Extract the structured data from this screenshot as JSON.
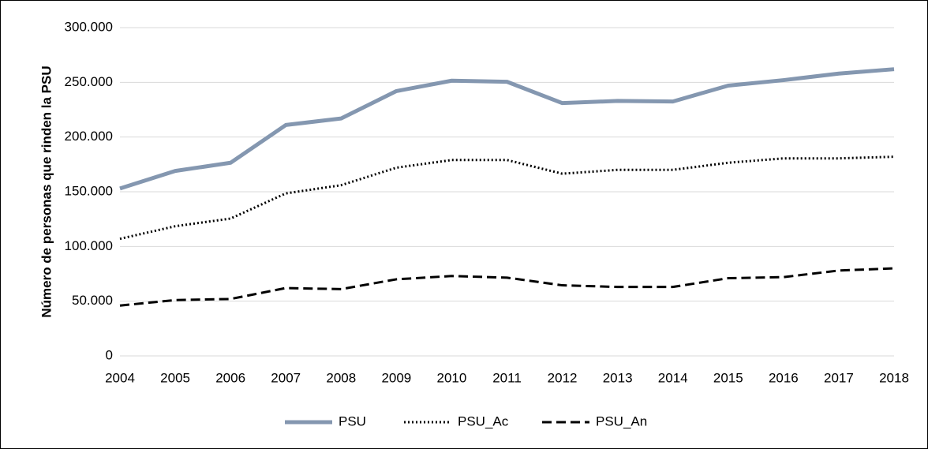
{
  "chart_data": {
    "type": "line",
    "y_label": "Número de personas que rinden la PSU",
    "categories": [
      "2004",
      "2005",
      "2006",
      "2007",
      "2008",
      "2009",
      "2010",
      "2011",
      "2012",
      "2013",
      "2014",
      "2015",
      "2016",
      "2017",
      "2018"
    ],
    "series": [
      {
        "name": "PSU",
        "color": "#8497b0",
        "width": 5,
        "dash": "none",
        "values": [
          153000,
          169000,
          176500,
          211000,
          217000,
          242000,
          251500,
          250500,
          231000,
          233000,
          232500,
          247000,
          252000,
          258000,
          262000
        ]
      },
      {
        "name": "PSU_Ac",
        "color": "#000000",
        "width": 3,
        "dash": "2 3",
        "values": [
          107000,
          118500,
          125500,
          148500,
          156000,
          172000,
          179000,
          179000,
          166500,
          170000,
          170000,
          176500,
          180500,
          180500,
          182000
        ]
      },
      {
        "name": "PSU_An",
        "color": "#000000",
        "width": 3,
        "dash": "12 6",
        "values": [
          46000,
          51000,
          52000,
          62000,
          61000,
          70000,
          73000,
          71500,
          64500,
          63000,
          63000,
          71000,
          72000,
          78000,
          80000
        ]
      }
    ],
    "ylim": [
      0,
      300000
    ],
    "yticks": [
      0,
      {
        "value": 50000,
        "label": "50.000"
      },
      {
        "value": 100000,
        "label": "100.000"
      },
      {
        "value": 150000,
        "label": "150.000"
      },
      {
        "value": 200000,
        "label": "200.000"
      },
      {
        "value": 250000,
        "label": "250.000"
      },
      {
        "value": 300000,
        "label": "300.000"
      }
    ],
    "grid": true
  }
}
